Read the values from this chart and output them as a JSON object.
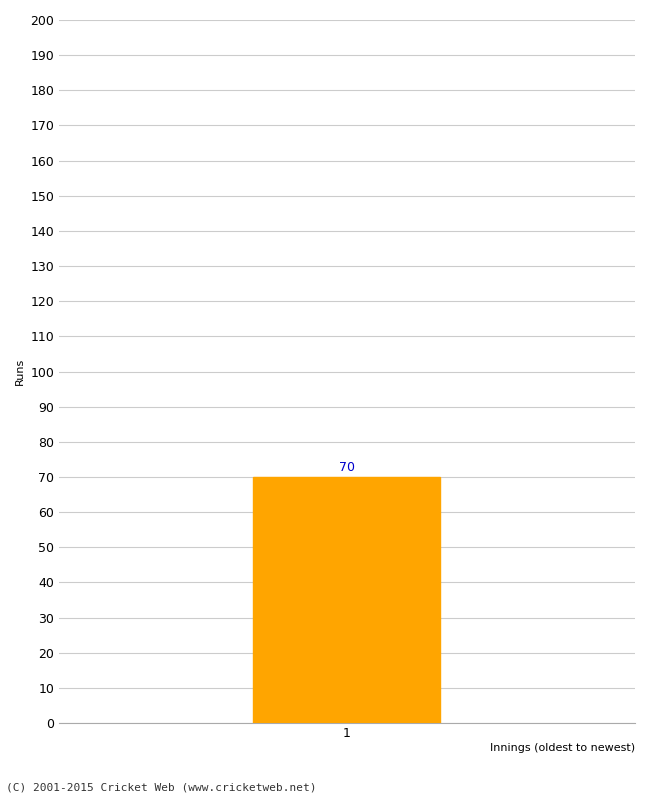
{
  "bar_values": [
    70
  ],
  "bar_positions": [
    1
  ],
  "bar_color": "#FFA500",
  "bar_width": 0.65,
  "xlabel": "Innings (oldest to newest)",
  "ylabel": "Runs",
  "ylim": [
    0,
    200
  ],
  "yticks": [
    0,
    10,
    20,
    30,
    40,
    50,
    60,
    70,
    80,
    90,
    100,
    110,
    120,
    130,
    140,
    150,
    160,
    170,
    180,
    190,
    200
  ],
  "xlim": [
    0.0,
    2.0
  ],
  "xticks": [
    1
  ],
  "xticklabels": [
    "1"
  ],
  "annotation_color": "#0000CC",
  "annotation_fontsize": 9,
  "tick_label_fontsize": 9,
  "footer_text": "(C) 2001-2015 Cricket Web (www.cricketweb.net)",
  "footer_fontsize": 8,
  "background_color": "#ffffff",
  "grid_color": "#cccccc",
  "ylabel_fontsize": 8,
  "xlabel_fontsize": 8,
  "xlabel_ha": "right"
}
